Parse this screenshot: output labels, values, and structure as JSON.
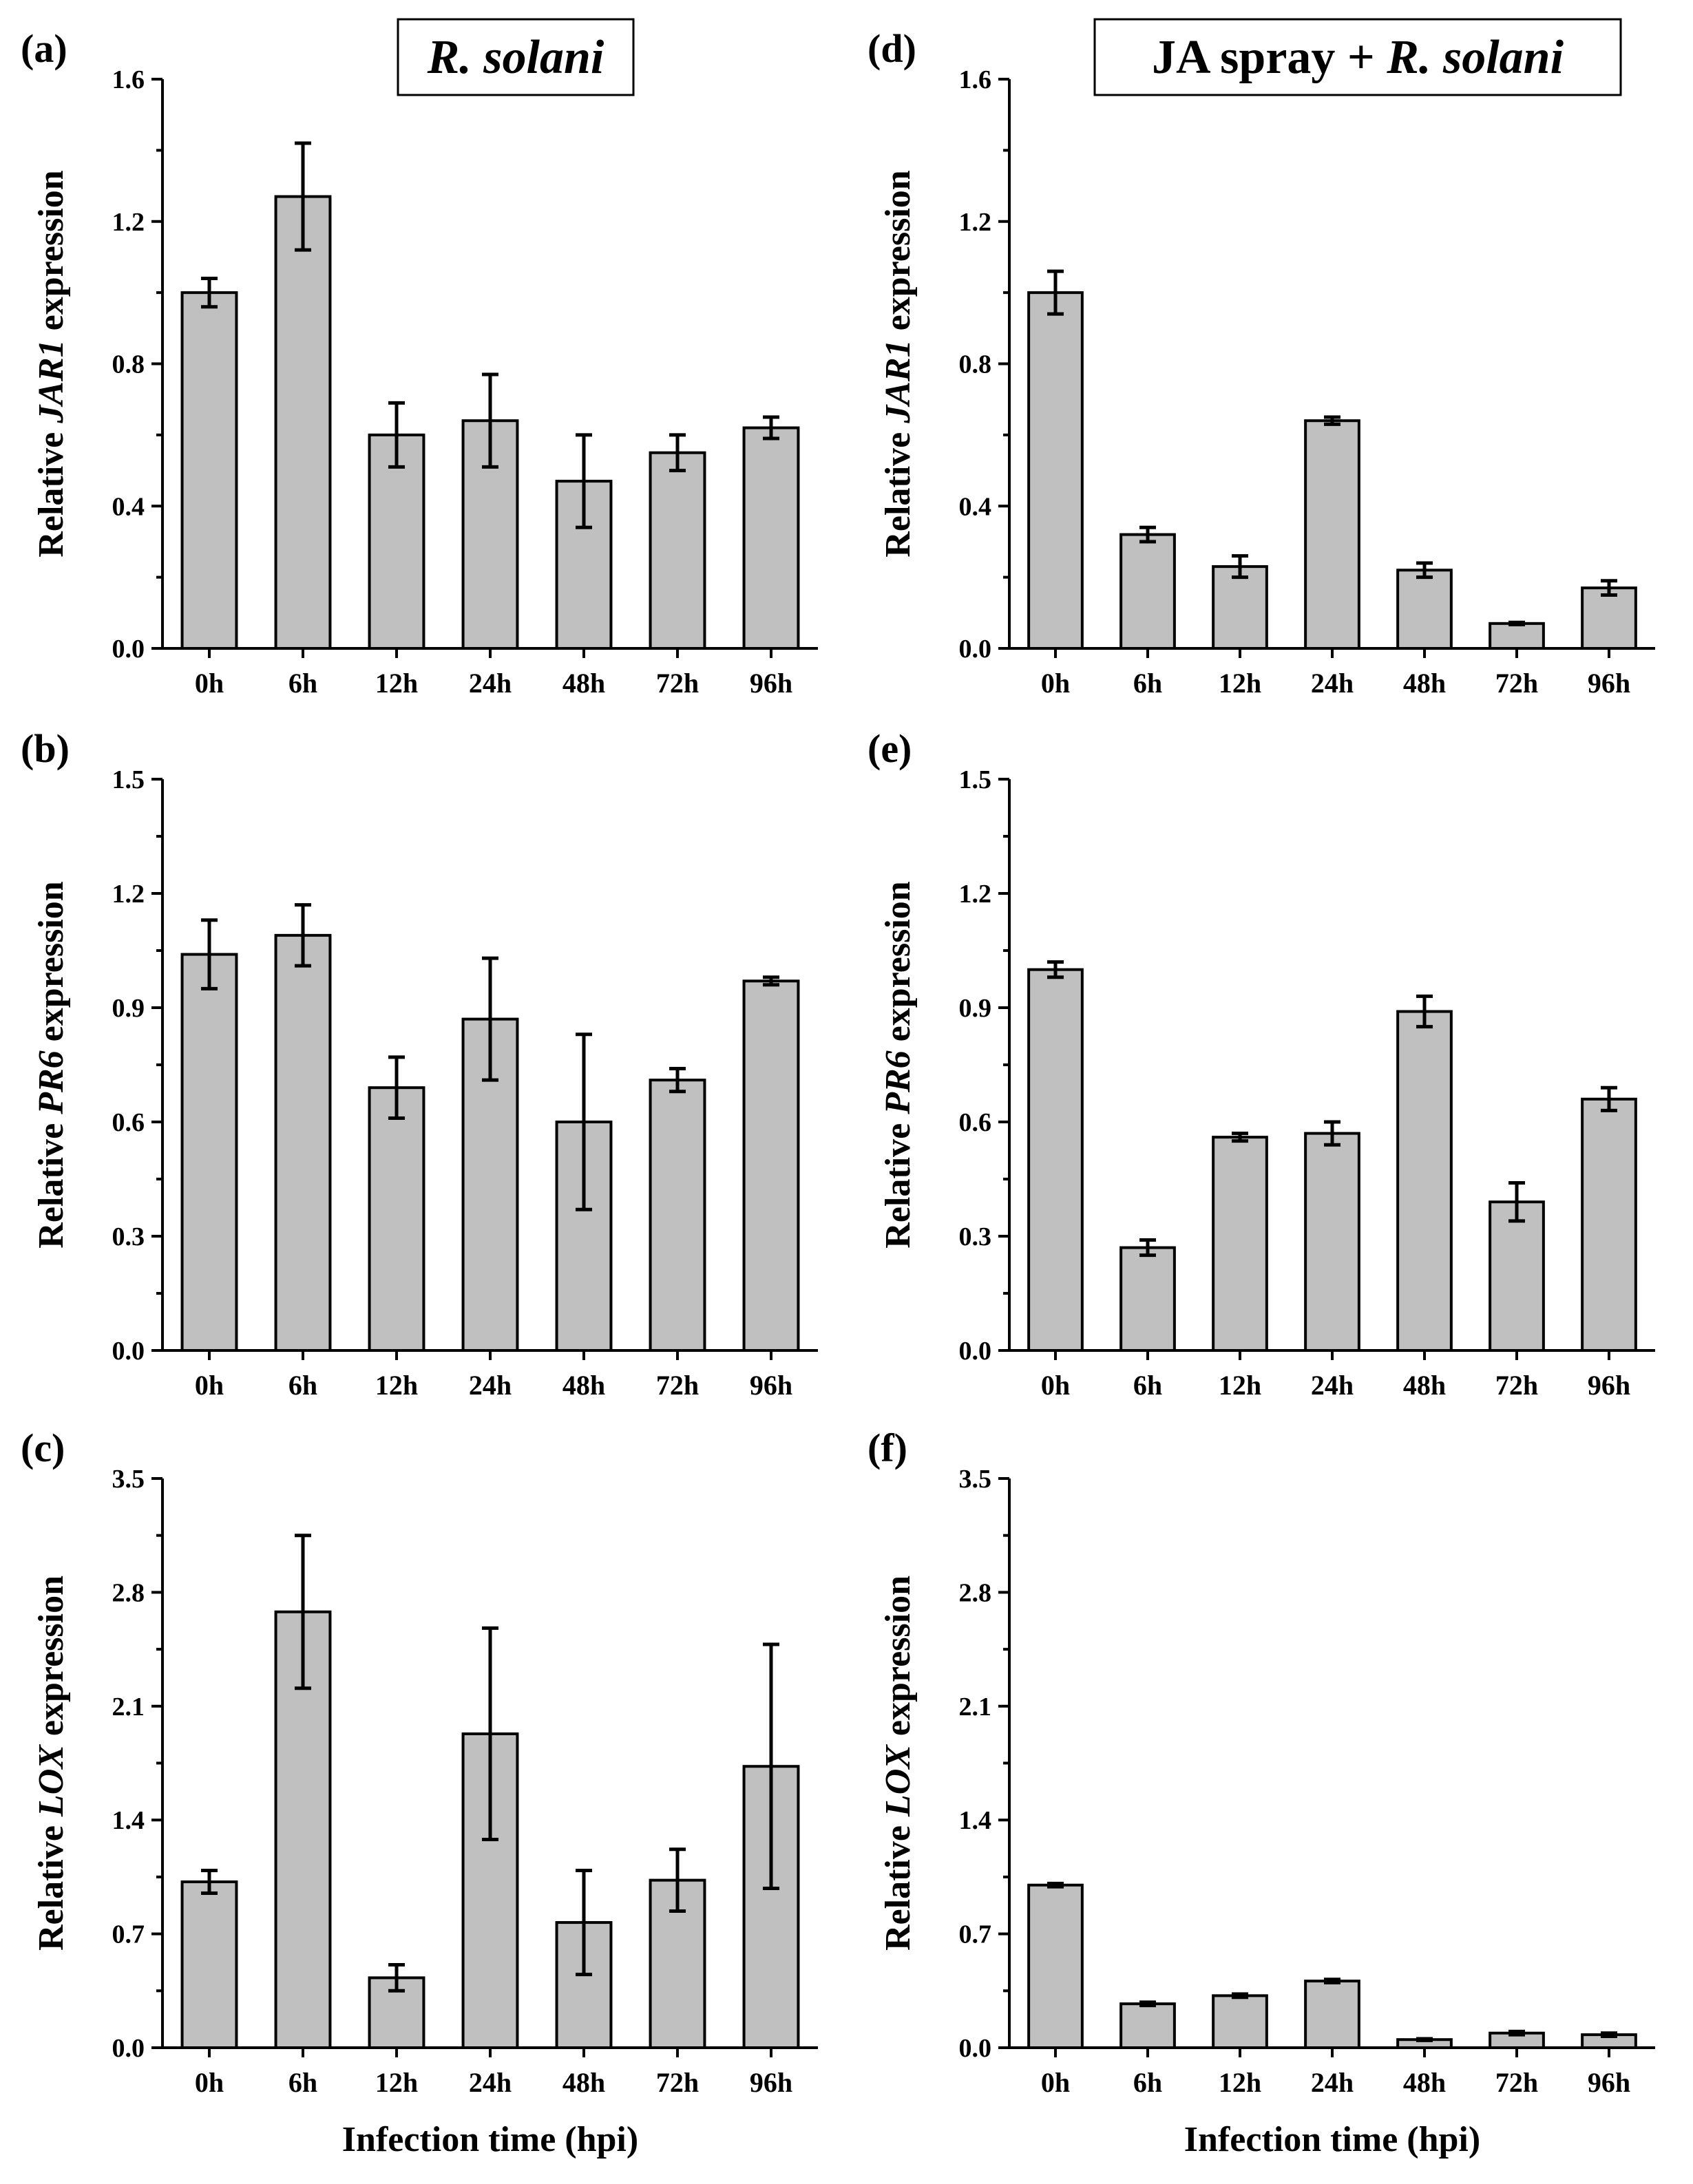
{
  "colors": {
    "bar_fill": "#c0c0c0",
    "bar_stroke": "#000000",
    "background": "#ffffff"
  },
  "chart_data": [
    {
      "panel": "(a)",
      "type": "bar",
      "title_italic": "R. solani",
      "title_prefix": "",
      "ylabel_prefix": "Relative ",
      "ylabel_gene": "JAR1",
      "ylabel_suffix": " expression",
      "xlabel": "",
      "categories": [
        "0h",
        "6h",
        "12h",
        "24h",
        "48h",
        "72h",
        "96h"
      ],
      "values": [
        1.0,
        1.27,
        0.6,
        0.64,
        0.47,
        0.55,
        0.62
      ],
      "errors": [
        0.04,
        0.15,
        0.09,
        0.13,
        0.13,
        0.05,
        0.03
      ],
      "ylim": [
        0,
        1.6
      ],
      "yticks": [
        "0.0",
        "0.4",
        "0.8",
        "1.2",
        "1.6"
      ]
    },
    {
      "panel": "(b)",
      "type": "bar",
      "title_italic": "",
      "title_prefix": "",
      "ylabel_prefix": "Relative ",
      "ylabel_gene": "PR6",
      "ylabel_suffix": " expression",
      "xlabel": "",
      "categories": [
        "0h",
        "6h",
        "12h",
        "24h",
        "48h",
        "72h",
        "96h"
      ],
      "values": [
        1.04,
        1.09,
        0.69,
        0.87,
        0.6,
        0.71,
        0.97
      ],
      "errors": [
        0.09,
        0.08,
        0.08,
        0.16,
        0.23,
        0.03,
        0.01
      ],
      "ylim": [
        0,
        1.5
      ],
      "yticks": [
        "0.0",
        "0.3",
        "0.6",
        "0.9",
        "1.2",
        "1.5"
      ]
    },
    {
      "panel": "(c)",
      "type": "bar",
      "title_italic": "",
      "title_prefix": "",
      "ylabel_prefix": "Relative ",
      "ylabel_gene": "LOX",
      "ylabel_suffix": " expression",
      "xlabel": "Infection time (hpi)",
      "categories": [
        "0h",
        "6h",
        "12h",
        "24h",
        "48h",
        "72h",
        "96h"
      ],
      "values": [
        1.02,
        2.68,
        0.43,
        1.93,
        0.77,
        1.03,
        1.73
      ],
      "errors": [
        0.07,
        0.47,
        0.08,
        0.65,
        0.32,
        0.19,
        0.75
      ],
      "ylim": [
        0,
        3.5
      ],
      "yticks": [
        "0.0",
        "0.7",
        "1.4",
        "2.1",
        "2.8",
        "3.5"
      ]
    },
    {
      "panel": "(d)",
      "type": "bar",
      "title_italic": "R. solani",
      "title_prefix": "JA spray + ",
      "ylabel_prefix": "Relative ",
      "ylabel_gene": "JAR1",
      "ylabel_suffix": " expression",
      "xlabel": "",
      "categories": [
        "0h",
        "6h",
        "12h",
        "24h",
        "48h",
        "72h",
        "96h"
      ],
      "values": [
        1.0,
        0.32,
        0.23,
        0.64,
        0.22,
        0.07,
        0.17
      ],
      "errors": [
        0.06,
        0.02,
        0.03,
        0.01,
        0.02,
        0.003,
        0.02
      ],
      "ylim": [
        0,
        1.6
      ],
      "yticks": [
        "0.0",
        "0.4",
        "0.8",
        "1.2",
        "1.6"
      ]
    },
    {
      "panel": "(e)",
      "type": "bar",
      "title_italic": "",
      "title_prefix": "",
      "ylabel_prefix": "Relative ",
      "ylabel_gene": "PR6",
      "ylabel_suffix": " expression",
      "xlabel": "",
      "categories": [
        "0h",
        "6h",
        "12h",
        "24h",
        "48h",
        "72h",
        "96h"
      ],
      "values": [
        1.0,
        0.27,
        0.56,
        0.57,
        0.89,
        0.39,
        0.66
      ],
      "errors": [
        0.02,
        0.02,
        0.01,
        0.03,
        0.04,
        0.05,
        0.03
      ],
      "ylim": [
        0,
        1.5
      ],
      "yticks": [
        "0.0",
        "0.3",
        "0.6",
        "0.9",
        "1.2",
        "1.5"
      ]
    },
    {
      "panel": "(f)",
      "type": "bar",
      "title_italic": "",
      "title_prefix": "",
      "ylabel_prefix": "Relative ",
      "ylabel_gene": "LOX",
      "ylabel_suffix": " expression",
      "xlabel": "Infection time (hpi)",
      "categories": [
        "0h",
        "6h",
        "12h",
        "24h",
        "48h",
        "72h",
        "96h"
      ],
      "values": [
        1.0,
        0.27,
        0.32,
        0.41,
        0.05,
        0.09,
        0.08
      ],
      "errors": [
        0.01,
        0.01,
        0.01,
        0.01,
        0.005,
        0.01,
        0.01
      ],
      "ylim": [
        0,
        3.5
      ],
      "yticks": [
        "0.0",
        "0.7",
        "1.4",
        "2.1",
        "2.8",
        "3.5"
      ]
    }
  ]
}
